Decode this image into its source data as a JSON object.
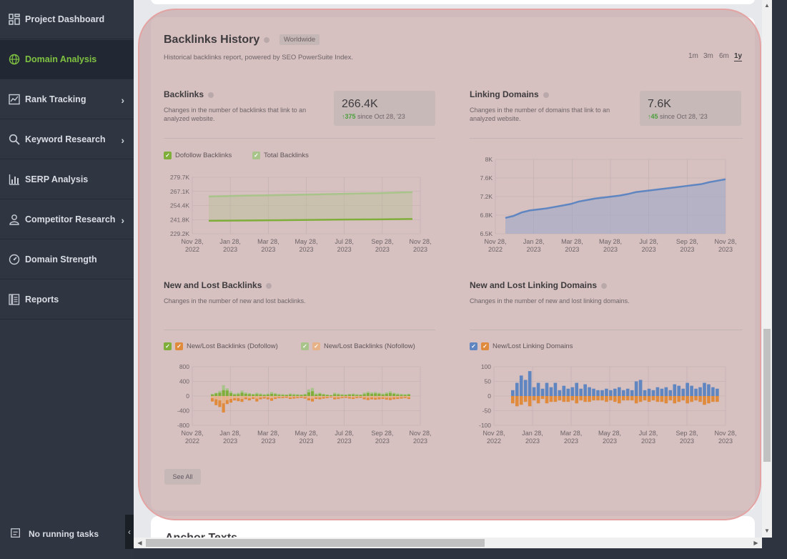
{
  "sidebar": {
    "items": [
      {
        "label": "Project Dashboard",
        "icon": "dashboard-icon"
      },
      {
        "label": "Domain Analysis",
        "icon": "globe-icon"
      },
      {
        "label": "Rank Tracking",
        "icon": "trend-icon"
      },
      {
        "label": "Keyword Research",
        "icon": "search-icon"
      },
      {
        "label": "SERP Analysis",
        "icon": "bar-chart-icon"
      },
      {
        "label": "Competitor Research",
        "icon": "user-icon"
      },
      {
        "label": "Domain Strength",
        "icon": "gauge-icon"
      },
      {
        "label": "Reports",
        "icon": "reports-icon"
      }
    ],
    "tasks_label": "No running tasks"
  },
  "main": {
    "title": "Backlinks History",
    "badge": "Worldwide",
    "subtitle": "Historical backlinks report, powered by SEO PowerSuite Index.",
    "ranges": [
      "1m",
      "3m",
      "6m",
      "1y"
    ],
    "active_range": "1y",
    "backlinks": {
      "title": "Backlinks",
      "desc": "Changes in the number of backlinks that link to an analyzed website.",
      "value": "266.4K",
      "delta": "375",
      "since": "since Oct 28, '23"
    },
    "linking_domains": {
      "title": "Linking Domains",
      "desc": "Changes in the number of domains that link to an analyzed website.",
      "value": "7.6K",
      "delta": "45",
      "since": "since Oct 28, '23"
    },
    "new_lost_backlinks": {
      "title": "New and Lost Backlinks",
      "desc": "Changes in the number of new and lost backlinks."
    },
    "new_lost_domains": {
      "title": "New and Lost Linking Domains",
      "desc": "Changes in the number of new and lost linking domains."
    },
    "legends": {
      "dofollow": "Dofollow Backlinks",
      "total": "Total Backlinks",
      "nl_dofollow": "New/Lost Backlinks (Dofollow)",
      "nl_nofollow": "New/Lost Backlinks (Nofollow)",
      "nl_domains": "New/Lost Linking Domains"
    },
    "see_all": "See All",
    "next_section_title": "Anchor Texts"
  },
  "colors": {
    "green": "#7fae3a",
    "light_green": "#a9c48a",
    "blue": "#5f86c0",
    "orange": "#e08a3c",
    "light_orange": "#e7b287"
  },
  "chart_data": [
    {
      "type": "line",
      "title": "Backlinks",
      "x": [
        "Nov 28, 2022",
        "Jan 28, 2023",
        "Mar 28, 2023",
        "May 28, 2023",
        "Jul 28, 2023",
        "Sep 28, 2023",
        "Nov 28, 2023"
      ],
      "x_ticks": [
        [
          "Nov 28,",
          "2022"
        ],
        [
          "Jan 28,",
          "2023"
        ],
        [
          "Mar 28,",
          "2023"
        ],
        [
          "May 28,",
          "2023"
        ],
        [
          "Jul 28,",
          "2023"
        ],
        [
          "Sep 28,",
          "2023"
        ],
        [
          "Nov 28,",
          "2023"
        ]
      ],
      "y_ticks": [
        "279.7K",
        "267.1K",
        "254.4K",
        "241.8K",
        "229.2K"
      ],
      "ylim": [
        229.2,
        279.7
      ],
      "series": [
        {
          "name": "Total Backlinks",
          "color": "#a9c48a",
          "values": [
            262.5,
            263.2,
            263.7,
            264.3,
            264.9,
            265.5,
            266.4
          ]
        },
        {
          "name": "Dofollow Backlinks",
          "color": "#7fae3a",
          "values": [
            240.8,
            241.0,
            241.3,
            241.6,
            241.9,
            242.1,
            242.4
          ]
        }
      ]
    },
    {
      "type": "area",
      "title": "Linking Domains",
      "x_ticks": [
        [
          "Nov 28,",
          "2022"
        ],
        [
          "Jan 28,",
          "2023"
        ],
        [
          "Mar 28,",
          "2023"
        ],
        [
          "May 28,",
          "2023"
        ],
        [
          "Jul 28,",
          "2023"
        ],
        [
          "Sep 28,",
          "2023"
        ],
        [
          "Nov 28,",
          "2023"
        ]
      ],
      "y_ticks": [
        "8K",
        "7.6K",
        "7.2K",
        "6.8K",
        "6.5K"
      ],
      "ylim": [
        6.5,
        8.0
      ],
      "series": [
        {
          "name": "Linking Domains",
          "color": "#5f86c0",
          "values": [
            6.82,
            6.86,
            6.93,
            6.97,
            6.99,
            7.01,
            7.04,
            7.07,
            7.1,
            7.15,
            7.18,
            7.21,
            7.23,
            7.25,
            7.27,
            7.3,
            7.34,
            7.36,
            7.38,
            7.4,
            7.42,
            7.44,
            7.46,
            7.48,
            7.5,
            7.54,
            7.57,
            7.6
          ]
        }
      ]
    },
    {
      "type": "bar",
      "title": "New and Lost Backlinks",
      "x_ticks": [
        [
          "Nov 28,",
          "2022"
        ],
        [
          "Jan 28,",
          "2023"
        ],
        [
          "Mar 28,",
          "2023"
        ],
        [
          "May 28,",
          "2023"
        ],
        [
          "Jul 28,",
          "2023"
        ],
        [
          "Sep 28,",
          "2023"
        ],
        [
          "Nov 28,",
          "2023"
        ]
      ],
      "y_ticks": [
        "800",
        "400",
        "0",
        "-400",
        "-800"
      ],
      "ylim": [
        -800,
        800
      ],
      "new_dofollow": [
        60,
        90,
        140,
        300,
        210,
        130,
        70,
        90,
        150,
        100,
        80,
        60,
        90,
        70,
        50,
        70,
        110,
        80,
        60,
        50,
        40,
        70,
        60,
        50,
        40,
        60,
        180,
        220,
        70,
        90,
        60,
        40,
        30,
        90,
        70,
        50,
        40,
        60,
        70,
        50,
        40,
        90,
        120,
        100,
        110,
        90,
        70,
        100,
        130,
        90,
        70,
        60,
        50,
        60
      ],
      "new_nofollow": [
        40,
        70,
        90,
        160,
        150,
        80,
        40,
        50,
        90,
        60,
        50,
        40,
        50,
        40,
        30,
        40,
        60,
        50,
        30,
        30,
        30,
        40,
        30,
        30,
        30,
        40,
        100,
        130,
        40,
        60,
        40,
        30,
        20,
        50,
        40,
        30,
        30,
        40,
        40,
        30,
        30,
        50,
        80,
        60,
        70,
        60,
        40,
        60,
        80,
        60,
        40,
        30,
        30,
        40
      ],
      "lost_dofollow": [
        -150,
        -250,
        -300,
        -450,
        -220,
        -180,
        -120,
        -140,
        -160,
        -90,
        -120,
        -80,
        -150,
        -90,
        -70,
        -90,
        -130,
        -80,
        -60,
        -60,
        -50,
        -80,
        -70,
        -60,
        -50,
        -70,
        -120,
        -150,
        -80,
        -90,
        -70,
        -60,
        -40,
        -90,
        -80,
        -60,
        -50,
        -70,
        -80,
        -60,
        -50,
        -90,
        -110,
        -90,
        -100,
        -90,
        -80,
        -100,
        -110,
        -90,
        -80,
        -70,
        -60,
        -80
      ],
      "lost_nofollow": [
        -60,
        -90,
        -120,
        -200,
        -110,
        -80,
        -60,
        -60,
        -80,
        -40,
        -60,
        -40,
        -70,
        -40,
        -30,
        -40,
        -60,
        -40,
        -30,
        -30,
        -20,
        -40,
        -30,
        -30,
        -20,
        -30,
        -60,
        -70,
        -40,
        -40,
        -30,
        -30,
        -20,
        -40,
        -40,
        -30,
        -20,
        -30,
        -40,
        -30,
        -20,
        -40,
        -50,
        -40,
        -50,
        -40,
        -40,
        -50,
        -50,
        -40,
        -40,
        -30,
        -30,
        -40
      ]
    },
    {
      "type": "bar",
      "title": "New and Lost Linking Domains",
      "x_ticks": [
        [
          "Nov 28,",
          "2022"
        ],
        [
          "Jan 28,",
          "2023"
        ],
        [
          "Mar 28,",
          "2023"
        ],
        [
          "May 28,",
          "2023"
        ],
        [
          "Jul 28,",
          "2023"
        ],
        [
          "Sep 28,",
          "2023"
        ],
        [
          "Nov 28,",
          "2023"
        ]
      ],
      "y_ticks": [
        "100",
        "50",
        "0",
        "-50",
        "-100"
      ],
      "ylim": [
        -100,
        100
      ],
      "new": [
        20,
        45,
        70,
        55,
        85,
        30,
        45,
        25,
        45,
        30,
        45,
        20,
        35,
        25,
        30,
        45,
        25,
        40,
        30,
        25,
        20,
        20,
        25,
        20,
        25,
        30,
        20,
        25,
        20,
        50,
        55,
        20,
        25,
        20,
        30,
        25,
        30,
        20,
        40,
        35,
        25,
        45,
        35,
        25,
        30,
        45,
        40,
        30,
        25
      ],
      "lost": [
        -25,
        -35,
        -30,
        -20,
        -35,
        -15,
        -25,
        -10,
        -25,
        -20,
        -20,
        -15,
        -20,
        -20,
        -15,
        -25,
        -15,
        -20,
        -20,
        -15,
        -15,
        -15,
        -20,
        -15,
        -20,
        -25,
        -15,
        -15,
        -15,
        -25,
        -20,
        -15,
        -20,
        -15,
        -20,
        -20,
        -25,
        -15,
        -25,
        -20,
        -15,
        -25,
        -20,
        -15,
        -20,
        -30,
        -25,
        -20,
        -20
      ]
    }
  ]
}
